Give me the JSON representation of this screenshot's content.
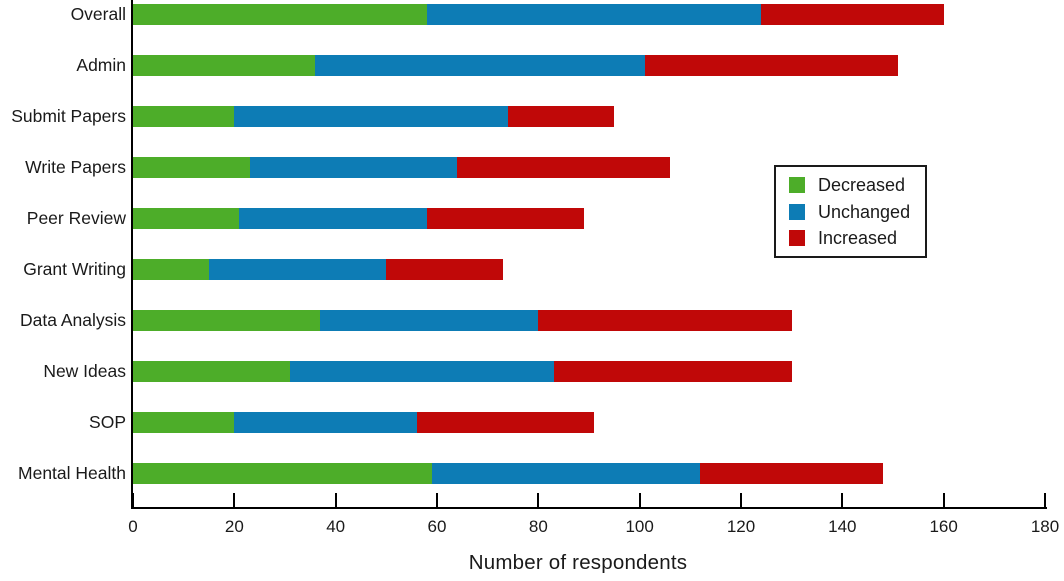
{
  "chart_data": {
    "type": "bar",
    "orientation": "horizontal",
    "stacked": true,
    "title": "",
    "xlabel": "Number of respondents",
    "ylabel": "",
    "xlim": [
      0,
      180
    ],
    "xticks": [
      0,
      20,
      40,
      60,
      80,
      100,
      120,
      140,
      160,
      180
    ],
    "grid": false,
    "legend_position": "inside upper right",
    "categories": [
      "Overall",
      "Admin",
      "Submit Papers",
      "Write Papers",
      "Peer Review",
      "Grant Writing",
      "Data Analysis",
      "New Ideas",
      "SOP",
      "Mental Health"
    ],
    "series": [
      {
        "name": "Decreased",
        "color": "#4dad29",
        "values": [
          58,
          36,
          20,
          23,
          21,
          15,
          37,
          31,
          20,
          59
        ]
      },
      {
        "name": "Unchanged",
        "color": "#0d7cb5",
        "values": [
          66,
          65,
          54,
          41,
          37,
          35,
          43,
          52,
          36,
          53
        ]
      },
      {
        "name": "Increased",
        "color": "#c00808",
        "values": [
          36,
          50,
          21,
          42,
          31,
          23,
          50,
          47,
          35,
          36
        ]
      }
    ]
  },
  "colors": {
    "background": "#ffffff",
    "axis": "#000000",
    "text": "#1a1a1a",
    "legend_border": "#1a1a1a"
  }
}
